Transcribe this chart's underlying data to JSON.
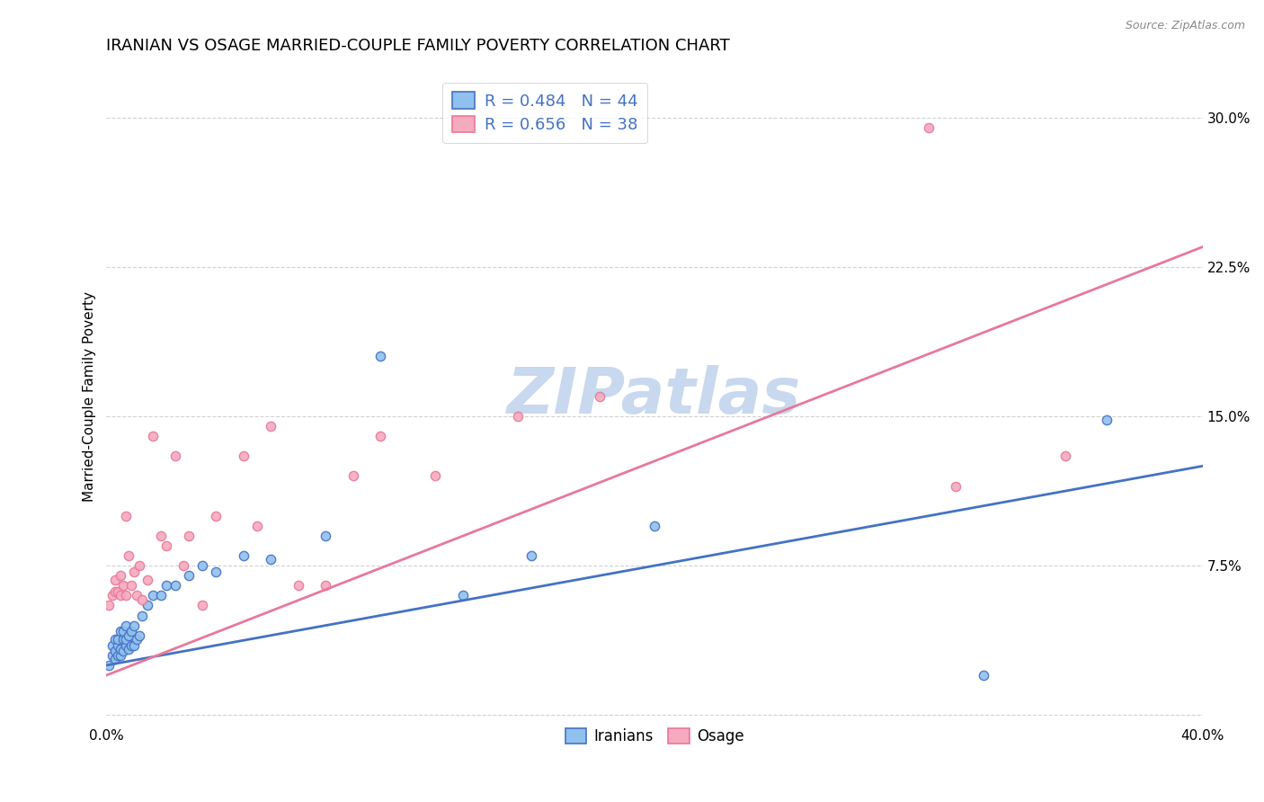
{
  "title": "IRANIAN VS OSAGE MARRIED-COUPLE FAMILY POVERTY CORRELATION CHART",
  "source": "Source: ZipAtlas.com",
  "ylabel": "Married-Couple Family Poverty",
  "watermark": "ZIPatlas",
  "xlim": [
    0.0,
    0.4
  ],
  "ylim": [
    -0.005,
    0.325
  ],
  "xticks": [
    0.0,
    0.1,
    0.2,
    0.3,
    0.4
  ],
  "yticks": [
    0.0,
    0.075,
    0.15,
    0.225,
    0.3
  ],
  "ytick_labels": [
    "",
    "7.5%",
    "15.0%",
    "22.5%",
    "30.0%"
  ],
  "legend_r_iranian": "0.484",
  "legend_n_iranian": "44",
  "legend_r_osage": "0.656",
  "legend_n_osage": "38",
  "legend_label_iranian": "Iranians",
  "legend_label_osage": "Osage",
  "color_iranian": "#90C0ED",
  "color_osage": "#F5AABE",
  "color_line_iranian": "#4472C4",
  "color_line_osage": "#E8789A",
  "iranian_x": [
    0.001,
    0.002,
    0.002,
    0.003,
    0.003,
    0.003,
    0.004,
    0.004,
    0.004,
    0.005,
    0.005,
    0.005,
    0.006,
    0.006,
    0.006,
    0.007,
    0.007,
    0.007,
    0.008,
    0.008,
    0.009,
    0.009,
    0.01,
    0.01,
    0.011,
    0.012,
    0.013,
    0.015,
    0.017,
    0.02,
    0.022,
    0.025,
    0.03,
    0.035,
    0.04,
    0.05,
    0.06,
    0.08,
    0.1,
    0.13,
    0.155,
    0.2,
    0.32,
    0.365
  ],
  "iranian_y": [
    0.025,
    0.03,
    0.035,
    0.028,
    0.032,
    0.038,
    0.03,
    0.035,
    0.038,
    0.03,
    0.033,
    0.042,
    0.032,
    0.038,
    0.042,
    0.035,
    0.038,
    0.045,
    0.033,
    0.04,
    0.035,
    0.042,
    0.035,
    0.045,
    0.038,
    0.04,
    0.05,
    0.055,
    0.06,
    0.06,
    0.065,
    0.065,
    0.07,
    0.075,
    0.072,
    0.08,
    0.078,
    0.09,
    0.18,
    0.06,
    0.08,
    0.095,
    0.02,
    0.148
  ],
  "osage_x": [
    0.001,
    0.002,
    0.003,
    0.003,
    0.004,
    0.005,
    0.005,
    0.006,
    0.007,
    0.007,
    0.008,
    0.009,
    0.01,
    0.011,
    0.012,
    0.013,
    0.015,
    0.017,
    0.02,
    0.022,
    0.025,
    0.028,
    0.03,
    0.035,
    0.04,
    0.05,
    0.055,
    0.06,
    0.07,
    0.08,
    0.09,
    0.1,
    0.12,
    0.15,
    0.18,
    0.3,
    0.31,
    0.35
  ],
  "osage_y": [
    0.055,
    0.06,
    0.062,
    0.068,
    0.062,
    0.06,
    0.07,
    0.065,
    0.06,
    0.1,
    0.08,
    0.065,
    0.072,
    0.06,
    0.075,
    0.058,
    0.068,
    0.14,
    0.09,
    0.085,
    0.13,
    0.075,
    0.09,
    0.055,
    0.1,
    0.13,
    0.095,
    0.145,
    0.065,
    0.065,
    0.12,
    0.14,
    0.12,
    0.15,
    0.16,
    0.295,
    0.115,
    0.13
  ],
  "background_color": "#FFFFFF",
  "grid_color": "#CCCCCC",
  "title_fontsize": 13,
  "axis_label_fontsize": 11,
  "tick_fontsize": 11,
  "watermark_color": "#C8D8EE",
  "watermark_fontsize": 52,
  "line_iranian_start_y": 0.025,
  "line_iranian_end_y": 0.125,
  "line_osage_start_y": 0.02,
  "line_osage_end_y": 0.235
}
